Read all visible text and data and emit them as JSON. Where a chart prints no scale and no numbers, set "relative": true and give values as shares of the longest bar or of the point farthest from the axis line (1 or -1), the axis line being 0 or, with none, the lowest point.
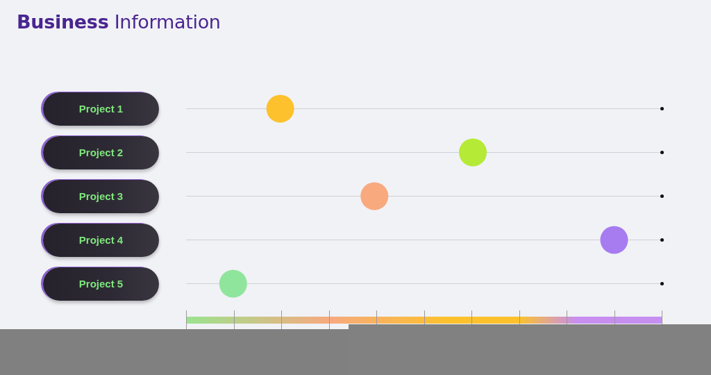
{
  "chart_data": {
    "type": "scatter",
    "title": "Business Information",
    "orientation": "horizontal",
    "relative": true,
    "categories": [
      "Project 1",
      "Project 2",
      "Project 3",
      "Project 4",
      "Project 5"
    ],
    "values": [
      0.22,
      0.67,
      0.44,
      1,
      0.11
    ],
    "colors": [
      "#fcc12c",
      "#b5ea36",
      "#f9a97e",
      "#a77cf0",
      "#8fe59c"
    ],
    "grid": "y",
    "legend": false,
    "marker": "circle",
    "tick_labels": "y"
  }
}
